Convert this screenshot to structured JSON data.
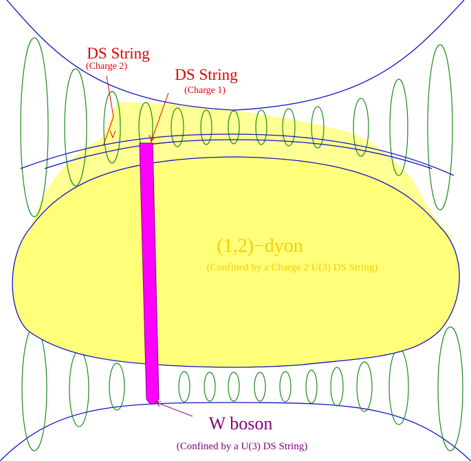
{
  "labels": {
    "ds_string_2": {
      "title": "DS String",
      "subtitle": "(Charge 2)"
    },
    "ds_string_1": {
      "title": "DS String",
      "subtitle": "(Charge 1)"
    },
    "dyon": {
      "title": "(1,2)−dyon",
      "subtitle": "(Confined by a Charge 2 U(3) DS String)"
    },
    "w_boson": {
      "title": "W boson",
      "subtitle": "(Confined by a U(3) DS String)"
    }
  }
}
